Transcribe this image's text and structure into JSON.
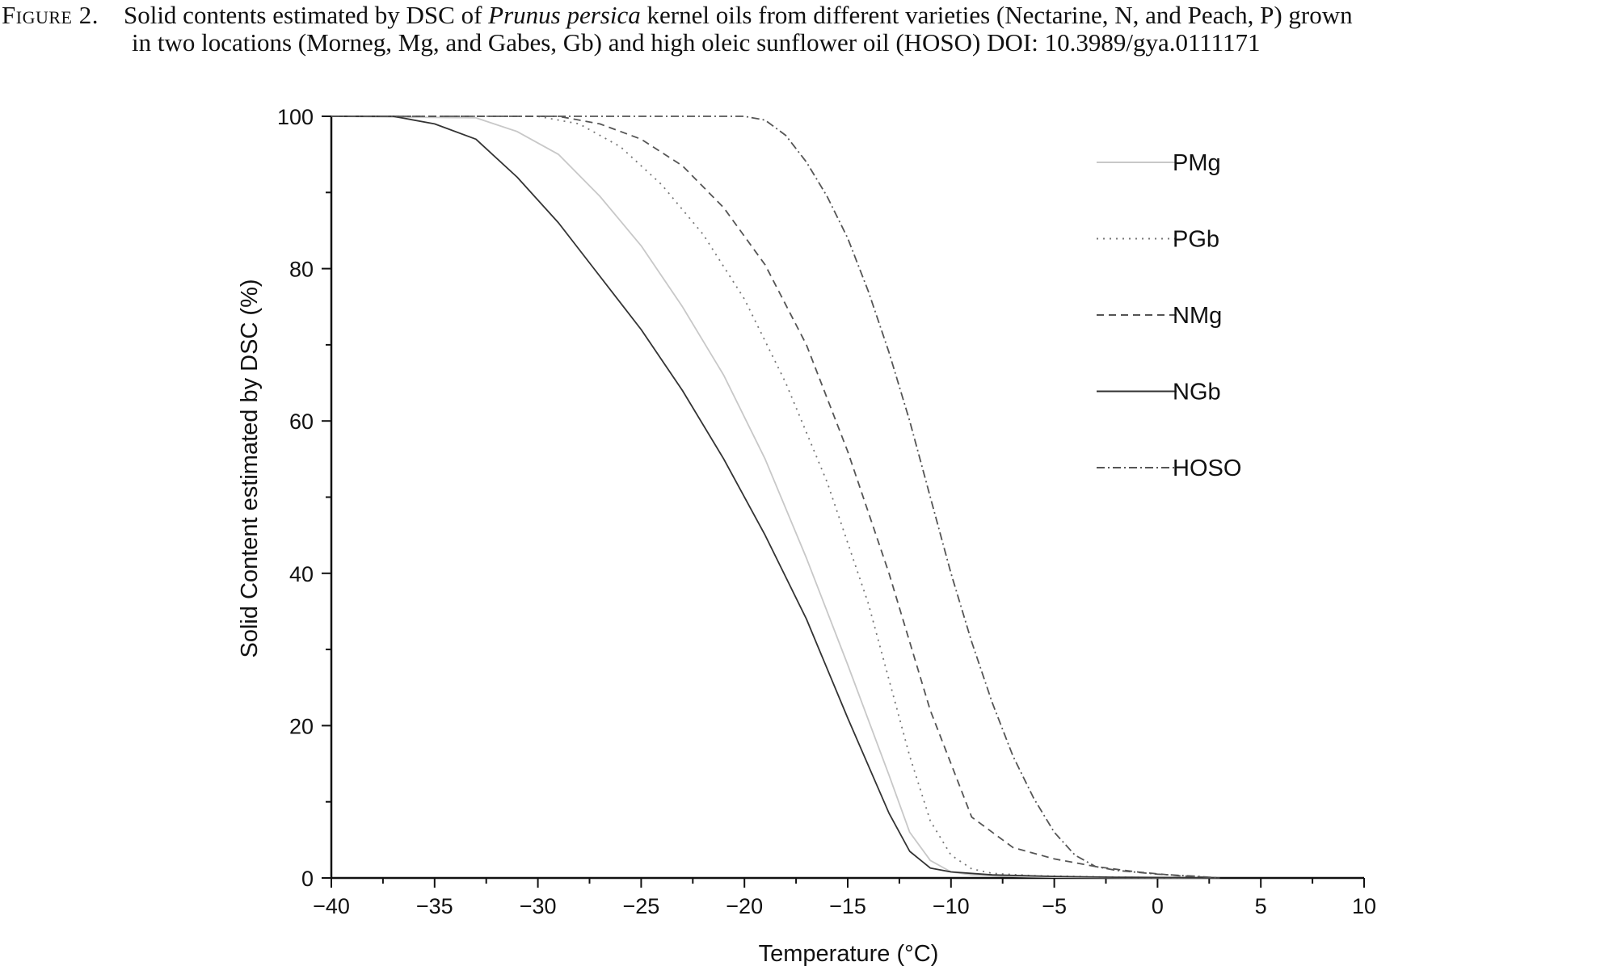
{
  "caption": {
    "figure_label": "Figure 2.",
    "text_before_italic": "Solid contents estimated by DSC of ",
    "italic": "Prunus persica",
    "text_after_italic": " kernel oils from different varieties (Nectarine, N, and Peach, P) grown",
    "line2": "in two locations (Morneg, Mg, and Gabes, Gb) and high oleic sunflower oil (HOSO) DOI: 10.3989/gya.0111171"
  },
  "chart_data": {
    "type": "line",
    "xlabel": "Temperature (°C)",
    "ylabel": "Solid Content estimated by DSC (%)",
    "xlim": [
      -40,
      10
    ],
    "ylim": [
      0,
      100
    ],
    "x_ticks": [
      "−40",
      "−35",
      "−30",
      "−25",
      "−20",
      "−15",
      "−10",
      "−5",
      "0",
      "5",
      "10"
    ],
    "y_ticks": [
      "0",
      "20",
      "40",
      "60",
      "80",
      "100"
    ],
    "x_tick_values": [
      -40,
      -35,
      -30,
      -25,
      -20,
      -15,
      -10,
      -5,
      0,
      5,
      10
    ],
    "y_tick_values": [
      0,
      20,
      40,
      60,
      80,
      100
    ],
    "grid": false,
    "legend_position": "top-right",
    "series": [
      {
        "name": "PMg",
        "color": "#c8c8c8",
        "dash": "solid",
        "x": [
          -40,
          -33,
          -31,
          -29,
          -27,
          -25,
          -23,
          -21,
          -19,
          -17,
          -15,
          -13,
          -12,
          -11,
          -10,
          -9,
          -7,
          -5,
          -2,
          1,
          3
        ],
        "y": [
          100,
          99.8,
          98,
          95,
          89.5,
          83,
          75,
          66,
          55,
          42,
          28,
          13.5,
          6,
          2.3,
          0.8,
          0.4,
          0.2,
          0.1,
          0.05,
          0.02,
          0
        ]
      },
      {
        "name": "PGb",
        "color": "#777777",
        "dash": "dotted",
        "x": [
          -40,
          -30,
          -28,
          -26,
          -24,
          -22,
          -20,
          -18,
          -16,
          -14,
          -12,
          -11,
          -10,
          -9,
          -8,
          -6,
          -4,
          -2,
          0,
          3
        ],
        "y": [
          100,
          100,
          99,
          96,
          91,
          84.5,
          76,
          65,
          52,
          36,
          16,
          7.5,
          3,
          1.2,
          0.6,
          0.3,
          0.2,
          0.1,
          0.05,
          0
        ]
      },
      {
        "name": "NMg",
        "color": "#555555",
        "dash": "dashed",
        "x": [
          -40,
          -29,
          -27,
          -25,
          -23,
          -21,
          -19,
          -17,
          -15,
          -13,
          -11,
          -9,
          -7,
          -5,
          -3,
          -1,
          1,
          3
        ],
        "y": [
          100,
          100,
          99,
          97,
          93.5,
          88,
          80.5,
          70,
          56,
          40,
          22,
          8,
          4,
          2.5,
          1.5,
          0.8,
          0.3,
          0
        ]
      },
      {
        "name": "NGb",
        "color": "#333333",
        "dash": "solid",
        "x": [
          -40,
          -37,
          -35,
          -33,
          -31,
          -29,
          -27,
          -25,
          -23,
          -21,
          -19,
          -17,
          -15,
          -13,
          -12,
          -11,
          -10,
          -8,
          -5,
          -2,
          1,
          3
        ],
        "y": [
          100,
          100,
          99,
          97,
          92,
          86,
          79,
          72,
          64,
          55,
          45,
          34,
          21,
          8.5,
          3.5,
          1.3,
          0.8,
          0.4,
          0.2,
          0.1,
          0.05,
          0
        ]
      },
      {
        "name": "HOSO",
        "color": "#555555",
        "dash": "dashdot",
        "x": [
          -40,
          -20,
          -19,
          -18,
          -17,
          -16,
          -15,
          -14,
          -13,
          -12,
          -11,
          -10,
          -9,
          -8,
          -7,
          -6,
          -5,
          -4,
          -3,
          -2,
          0,
          2,
          3
        ],
        "y": [
          100,
          100,
          99.5,
          97.5,
          94,
          89.5,
          84,
          77,
          69,
          60,
          50,
          40,
          31,
          23,
          16,
          10.5,
          6,
          3,
          1.5,
          1,
          0.5,
          0.2,
          0
        ]
      }
    ]
  }
}
